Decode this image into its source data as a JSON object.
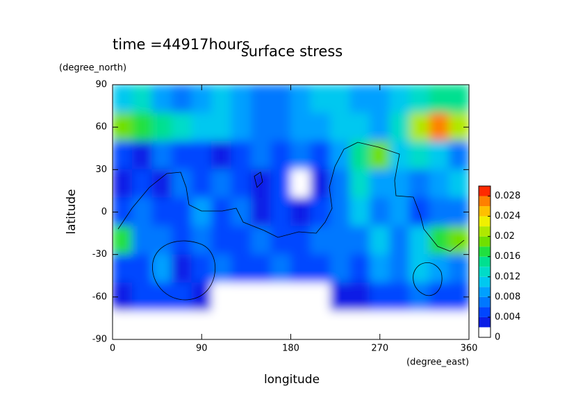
{
  "chart_data": {
    "type": "contour",
    "title": "surface stress",
    "annotation": "time =44917hours",
    "x_label": "longitude",
    "y_label": "latitude",
    "x_units": "(degree_east)",
    "y_units": "(degree_north)",
    "xlim": [
      0,
      360
    ],
    "ylim": [
      -90,
      90
    ],
    "xticks": [
      0,
      90,
      180,
      270,
      360
    ],
    "yticks": [
      -90,
      -60,
      -30,
      0,
      30,
      60,
      90
    ],
    "x": [
      10,
      30,
      50,
      70,
      90,
      110,
      130,
      150,
      170,
      190,
      210,
      230,
      250,
      270,
      290,
      310,
      330,
      350
    ],
    "y": [
      80,
      60,
      40,
      20,
      0,
      -20,
      -40,
      -60,
      -80
    ],
    "z": [
      [
        0.01,
        0.012,
        0.008,
        0.006,
        0.008,
        0.01,
        0.008,
        0.006,
        0.006,
        0.008,
        0.01,
        0.01,
        0.008,
        0.008,
        0.01,
        0.012,
        0.014,
        0.014
      ],
      [
        0.018,
        0.016,
        0.014,
        0.012,
        0.01,
        0.01,
        0.008,
        0.006,
        0.006,
        0.008,
        0.008,
        0.01,
        0.01,
        0.008,
        0.012,
        0.02,
        0.026,
        0.02
      ],
      [
        0.004,
        0.002,
        0.006,
        0.004,
        0.004,
        0.002,
        0.004,
        0.006,
        0.004,
        0.006,
        0.004,
        0.008,
        0.014,
        0.018,
        0.01,
        0.012,
        0.01,
        0.006
      ],
      [
        0.002,
        0.004,
        0.002,
        0.006,
        0.004,
        0.006,
        0.004,
        0.002,
        0.004,
        0.001,
        0.002,
        0.006,
        0.012,
        0.008,
        0.008,
        0.006,
        0.008,
        0.01
      ],
      [
        0.004,
        0.006,
        0.004,
        0.004,
        0.008,
        0.004,
        0.006,
        0.002,
        0.004,
        0.002,
        0.004,
        0.006,
        0.01,
        0.006,
        0.008,
        0.004,
        0.006,
        0.006
      ],
      [
        0.016,
        0.006,
        0.006,
        0.004,
        0.006,
        0.004,
        0.004,
        0.006,
        0.004,
        0.004,
        0.006,
        0.006,
        0.006,
        0.01,
        0.006,
        0.01,
        0.016,
        0.018
      ],
      [
        0.004,
        0.004,
        0.008,
        0.002,
        0.004,
        0.006,
        0.004,
        0.004,
        0.006,
        0.004,
        0.004,
        0.006,
        0.004,
        0.008,
        0.006,
        0.01,
        0.008,
        0.006
      ],
      [
        0.002,
        0.004,
        0.004,
        0.004,
        0.002,
        0.001,
        0.001,
        0.001,
        0.001,
        0.001,
        0.001,
        0.002,
        0.002,
        0.004,
        0.004,
        0.006,
        0.004,
        0.004
      ],
      [
        0,
        0,
        0,
        0,
        0,
        0,
        0,
        0,
        0,
        0,
        0,
        0,
        0,
        0,
        0,
        0,
        0,
        0
      ]
    ],
    "colorbar": {
      "levels": [
        0,
        0.002,
        0.004,
        0.006,
        0.008,
        0.01,
        0.012,
        0.014,
        0.016,
        0.018,
        0.02,
        0.022,
        0.024,
        0.026,
        0.028,
        0.03
      ],
      "colors": [
        "#ffffff",
        "#0a1ee6",
        "#0046ff",
        "#0078ff",
        "#00a0ff",
        "#00c8f0",
        "#00dcc8",
        "#00e090",
        "#20e040",
        "#70e000",
        "#b0e800",
        "#f0f000",
        "#ffc000",
        "#ff8000",
        "#ff2a00"
      ],
      "ticks": [
        0,
        0.004,
        0.008,
        0.012,
        0.016,
        0.02,
        0.024,
        0.028
      ]
    }
  }
}
